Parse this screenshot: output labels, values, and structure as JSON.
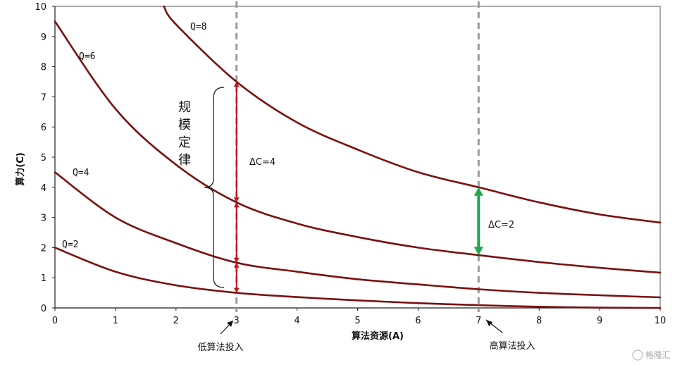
{
  "chart_data": {
    "type": "line",
    "title": "",
    "xlabel": "算法资源(A)",
    "ylabel": "算力(C)",
    "xlim": [
      0,
      10
    ],
    "ylim": [
      0,
      10
    ],
    "x_ticks": [
      "0",
      "1",
      "2",
      "3",
      "4",
      "5",
      "6",
      "7",
      "8",
      "9",
      "10"
    ],
    "y_ticks": [
      "0",
      "1",
      "2",
      "3",
      "4",
      "5",
      "6",
      "7",
      "8",
      "9",
      "10"
    ],
    "grid": false,
    "colors": {
      "curve": "#7a1010",
      "red_arrow": "#c0141a",
      "green_arrow": "#1fa84a",
      "dashed": "#9a9a9a"
    },
    "series": [
      {
        "name": "Q=2",
        "x": [
          0,
          1,
          2,
          3,
          4,
          5,
          6,
          7,
          8,
          9,
          10
        ],
        "y": [
          2.0,
          1.2,
          0.75,
          0.5,
          0.36,
          0.25,
          0.16,
          0.09,
          0.04,
          0.01,
          0.0
        ]
      },
      {
        "name": "Q=4",
        "x": [
          0,
          1,
          2,
          3,
          4,
          5,
          6,
          7,
          8,
          9,
          10
        ],
        "y": [
          4.5,
          3.0,
          2.15,
          1.5,
          1.2,
          0.95,
          0.78,
          0.62,
          0.5,
          0.42,
          0.35
        ]
      },
      {
        "name": "Q=6",
        "x": [
          0,
          1,
          2,
          3,
          4,
          5,
          6,
          7,
          8,
          9,
          10
        ],
        "y": [
          9.5,
          6.6,
          4.75,
          3.5,
          2.8,
          2.35,
          2.0,
          1.75,
          1.52,
          1.33,
          1.17
        ]
      },
      {
        "name": "Q=8",
        "x": [
          1.8,
          2,
          3,
          4,
          5,
          6,
          7,
          8,
          9,
          10
        ],
        "y": [
          10.0,
          9.4,
          7.5,
          6.15,
          5.25,
          4.5,
          4.0,
          3.5,
          3.1,
          2.83
        ]
      }
    ],
    "vlines": [
      {
        "x": 3,
        "label": "低算法投入"
      },
      {
        "x": 7,
        "label": "高算法投入"
      }
    ],
    "red_arrow_points": [
      0.5,
      1.5,
      3.5,
      7.5
    ],
    "green_arrow": {
      "x": 7,
      "from": 1.75,
      "to": 4.0
    },
    "annotations": {
      "delta_c4": "ΔC=4",
      "delta_c2": "ΔC=2",
      "brace_label": [
        "规",
        "模",
        "定",
        "律"
      ]
    },
    "watermark": "格隆汇"
  }
}
